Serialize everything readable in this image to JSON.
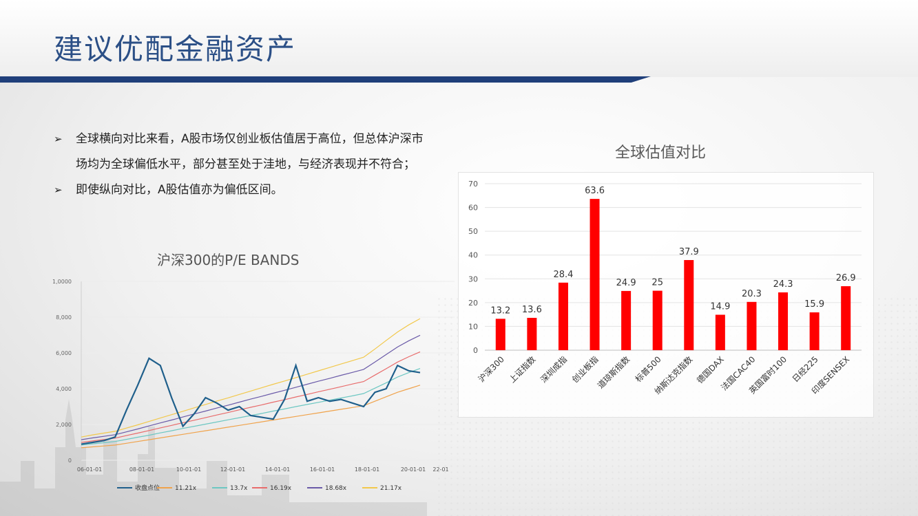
{
  "slide": {
    "title": "建议优配金融资产",
    "bullets": [
      {
        "mark": "➢",
        "text": "全球横向对比来看，A股市场仅创业板估值居于高位，但总体沪深市场均为全球偏低水平，部分甚至处于洼地，与经济表现并不符合；"
      },
      {
        "mark": "➢",
        "text": "即使纵向对比，A股估值亦为偏低区间。"
      }
    ]
  },
  "chart_data": [
    {
      "type": "bar",
      "title": "全球估值对比",
      "categories": [
        "沪深300",
        "上证指数",
        "深圳成指",
        "创业板指",
        "道琼斯指数",
        "标普500",
        "纳斯达克指数",
        "德国DAX",
        "法国CAC40",
        "英国富时100",
        "日经225",
        "印度SENSEX"
      ],
      "values": [
        13.2,
        13.6,
        28.4,
        63.6,
        24.9,
        25,
        37.9,
        14.9,
        20.3,
        24.3,
        15.9,
        26.9
      ],
      "value_labels": [
        "13.2",
        "13.6",
        "28.4",
        "63.6",
        "24.9",
        "25",
        "37.9",
        "14.9",
        "20.3",
        "24.3",
        "15.9",
        "26.9"
      ],
      "ylim": [
        0,
        70
      ],
      "yticks": [
        0,
        10,
        20,
        30,
        40,
        50,
        60,
        70
      ],
      "grid": true,
      "bar_color": "#ff0000"
    },
    {
      "type": "line",
      "title": "沪深300的P/E BANDS",
      "x_ticks": [
        "06-01-01",
        "08-01-01",
        "10-01-01",
        "12-01-01",
        "14-01-01",
        "16-01-01",
        "18-01-01",
        "20-01-01",
        "22-01"
      ],
      "y_ticks": [
        "0",
        "2,000",
        "4,000",
        "6,000",
        "8,000",
        "1,0000"
      ],
      "ylim": [
        0,
        10000
      ],
      "grid": true,
      "legend_position": "bottom",
      "series": [
        {
          "name": "收盘点位",
          "color": "#1f5f8b",
          "values": [
            900,
            1000,
            1100,
            1300,
            2800,
            4200,
            5700,
            5300,
            3500,
            1900,
            2600,
            3500,
            3200,
            2800,
            3000,
            2500,
            2400,
            2300,
            3400,
            5300,
            3300,
            3500,
            3300,
            3400,
            3200,
            3000,
            3800,
            4000,
            5300,
            5000,
            4900
          ]
        },
        {
          "name": "11.21x",
          "color": "#f0a24a",
          "values": [
            700,
            750,
            800,
            850,
            950,
            1050,
            1150,
            1250,
            1350,
            1450,
            1550,
            1650,
            1750,
            1850,
            1950,
            2050,
            2150,
            2250,
            2350,
            2450,
            2550,
            2650,
            2750,
            2850,
            2950,
            3050,
            3300,
            3550,
            3800,
            4000,
            4200
          ]
        },
        {
          "name": "13.7x",
          "color": "#6cc7c2",
          "values": [
            850,
            920,
            980,
            1050,
            1170,
            1290,
            1400,
            1530,
            1650,
            1780,
            1900,
            2020,
            2140,
            2260,
            2380,
            2500,
            2620,
            2750,
            2870,
            3000,
            3120,
            3240,
            3360,
            3480,
            3600,
            3730,
            4030,
            4330,
            4650,
            4900,
            5130
          ]
        },
        {
          "name": "16.19x",
          "color": "#e86b6b",
          "values": [
            1000,
            1080,
            1160,
            1240,
            1380,
            1520,
            1660,
            1810,
            1950,
            2100,
            2240,
            2380,
            2530,
            2670,
            2820,
            2960,
            3100,
            3250,
            3390,
            3540,
            3680,
            3830,
            3970,
            4110,
            4260,
            4400,
            4760,
            5120,
            5490,
            5790,
            6060
          ]
        },
        {
          "name": "18.68x",
          "color": "#6a5aa8",
          "values": [
            1150,
            1250,
            1340,
            1430,
            1590,
            1750,
            1920,
            2090,
            2250,
            2420,
            2590,
            2750,
            2920,
            3080,
            3250,
            3420,
            3580,
            3750,
            3910,
            4080,
            4250,
            4420,
            4580,
            4750,
            4910,
            5080,
            5490,
            5910,
            6330,
            6680,
            6990
          ]
        },
        {
          "name": "21.17x",
          "color": "#f2c84b",
          "values": [
            1300,
            1420,
            1520,
            1620,
            1800,
            1980,
            2170,
            2360,
            2550,
            2740,
            2930,
            3120,
            3310,
            3490,
            3680,
            3870,
            4060,
            4250,
            4430,
            4620,
            4810,
            5000,
            5190,
            5380,
            5570,
            5760,
            6220,
            6700,
            7170,
            7570,
            7920
          ]
        }
      ]
    }
  ]
}
